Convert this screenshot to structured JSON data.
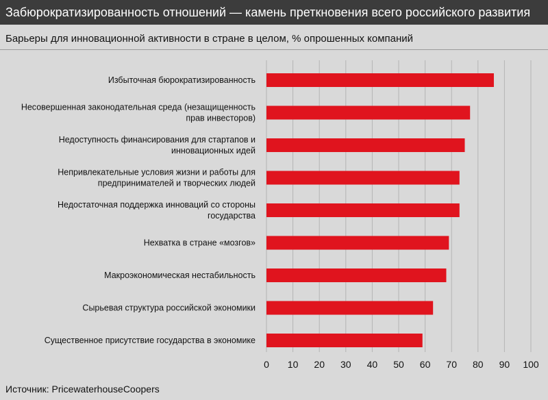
{
  "header": {
    "title": "Забюрократизированность отношений — камень преткновения всего российского развития"
  },
  "chart_data": {
    "type": "bar",
    "orientation": "horizontal",
    "subtitle": "Барьеры для инновационной активности в стране в целом, % опрошенных компаний",
    "categories": [
      [
        "Избыточная бюрократизированность"
      ],
      [
        "Несовершенная законодательная среда (незащищенность",
        "прав инвесторов)"
      ],
      [
        "Недоступность финансирования для стартапов и",
        "инновационных идей"
      ],
      [
        "Непривлекательные условия жизни и работы для",
        "предпринимателей и творческих людей"
      ],
      [
        "Недостаточная поддержка инноваций со стороны",
        "государства"
      ],
      [
        "Нехватка в стране «мозгов»"
      ],
      [
        "Макроэкономическая нестабильность"
      ],
      [
        "Сырьевая структура российской экономики"
      ],
      [
        "Существенное присутствие государства в экономике"
      ]
    ],
    "values": [
      86,
      77,
      75,
      73,
      73,
      69,
      68,
      63,
      59
    ],
    "xlim": [
      0,
      100
    ],
    "xticks": [
      0,
      10,
      20,
      30,
      40,
      50,
      60,
      70,
      80,
      90,
      100
    ],
    "grid": true,
    "bar_color": "#e0141e"
  },
  "footer": {
    "source": "Источник: PricewaterhouseCoopers"
  }
}
